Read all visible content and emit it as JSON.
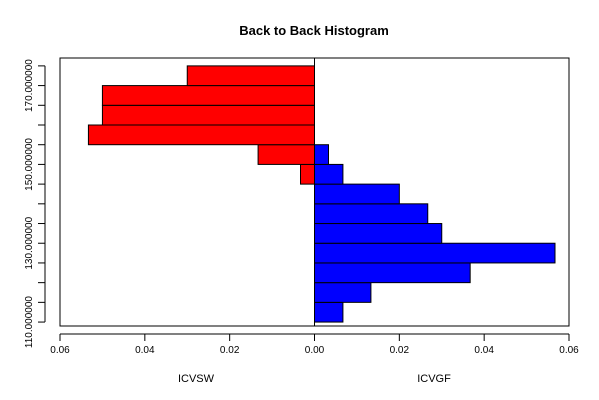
{
  "chart_data": {
    "type": "bar",
    "subtype": "back-to-back-histogram",
    "title": "Back to Back Histogram",
    "orientation": "horizontal",
    "bin_width": 5,
    "y_tick_labels": [
      "110.000000",
      "130.000000",
      "150.000000",
      "170.000000"
    ],
    "y_tick_values": [
      110,
      115,
      120,
      125,
      130,
      135,
      140,
      145,
      150,
      155,
      160,
      165,
      170,
      175
    ],
    "ylim": [
      109,
      177
    ],
    "x_tick_labels_left": [
      "0.06",
      "0.04",
      "0.02",
      "0.00"
    ],
    "x_tick_labels_right": [
      "0.02",
      "0.04",
      "0.06"
    ],
    "xlim": [
      -0.06,
      0.06
    ],
    "grid": false,
    "series": [
      {
        "name": "ICVSW",
        "side": "left",
        "color": "#ff0000",
        "bins": [
          {
            "from": 145,
            "to": 150,
            "value": 0.0033
          },
          {
            "from": 150,
            "to": 155,
            "value": 0.0133
          },
          {
            "from": 155,
            "to": 160,
            "value": 0.0533
          },
          {
            "from": 160,
            "to": 165,
            "value": 0.05
          },
          {
            "from": 165,
            "to": 170,
            "value": 0.05
          },
          {
            "from": 170,
            "to": 175,
            "value": 0.03
          }
        ]
      },
      {
        "name": "ICVGF",
        "side": "right",
        "color": "#0000ff",
        "bins": [
          {
            "from": 110,
            "to": 115,
            "value": 0.0067
          },
          {
            "from": 115,
            "to": 120,
            "value": 0.0133
          },
          {
            "from": 120,
            "to": 125,
            "value": 0.0367
          },
          {
            "from": 125,
            "to": 130,
            "value": 0.0567
          },
          {
            "from": 130,
            "to": 135,
            "value": 0.03
          },
          {
            "from": 135,
            "to": 140,
            "value": 0.0267
          },
          {
            "from": 140,
            "to": 145,
            "value": 0.02
          },
          {
            "from": 145,
            "to": 150,
            "value": 0.0067
          },
          {
            "from": 150,
            "to": 155,
            "value": 0.0033
          }
        ]
      }
    ]
  }
}
